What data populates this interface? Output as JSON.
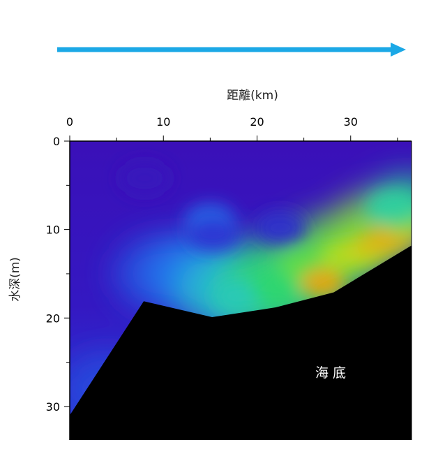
{
  "chart_data": {
    "type": "heatmap",
    "title": "",
    "xlabel": "距離(km)",
    "ylabel": "水深(m)",
    "x_axis_position": "top",
    "y_axis_inverted": true,
    "xlim": [
      0,
      36.5
    ],
    "ylim": [
      0,
      33.8
    ],
    "x_ticks": [
      0,
      10,
      20,
      30
    ],
    "y_ticks": [
      0,
      10,
      20,
      30
    ],
    "direction_arrow": {
      "color": "#1ba8e6",
      "points": "right"
    },
    "seabed_label": "海 底",
    "seabed_color": "#000000",
    "seabed_profile": [
      {
        "x": 0,
        "y": 31.0
      },
      {
        "x": 7.9,
        "y": 18.1
      },
      {
        "x": 15.2,
        "y": 19.9
      },
      {
        "x": 22.0,
        "y": 18.8
      },
      {
        "x": 28.2,
        "y": 17.1
      },
      {
        "x": 36.5,
        "y": 11.8
      }
    ],
    "colormap": [
      "#3a10b8",
      "#2a3ad8",
      "#2080f0",
      "#28c8c8",
      "#30d860",
      "#b8e020",
      "#f0a010",
      "#e04010"
    ],
    "field_features": [
      {
        "x": 8,
        "y": 4.2,
        "level": 0.02
      },
      {
        "x": 15,
        "y": 9.0,
        "level": 0.25
      },
      {
        "x": 15.3,
        "y": 10.5,
        "level": 0.12
      },
      {
        "x": 22.5,
        "y": 9.8,
        "level": 0.1
      },
      {
        "x": 18,
        "y": 17.5,
        "level": 0.45
      },
      {
        "x": 22,
        "y": 16.5,
        "level": 0.55
      },
      {
        "x": 25,
        "y": 14.5,
        "level": 0.62
      },
      {
        "x": 27,
        "y": 16.0,
        "level": 0.85
      },
      {
        "x": 29,
        "y": 13.0,
        "level": 0.7
      },
      {
        "x": 31,
        "y": 12.5,
        "level": 0.74
      },
      {
        "x": 33,
        "y": 11.5,
        "level": 0.8
      },
      {
        "x": 35,
        "y": 10.5,
        "level": 0.83
      },
      {
        "x": 35.5,
        "y": 9.0,
        "level": 0.65
      },
      {
        "x": 34.5,
        "y": 7.5,
        "level": 0.48
      }
    ]
  }
}
